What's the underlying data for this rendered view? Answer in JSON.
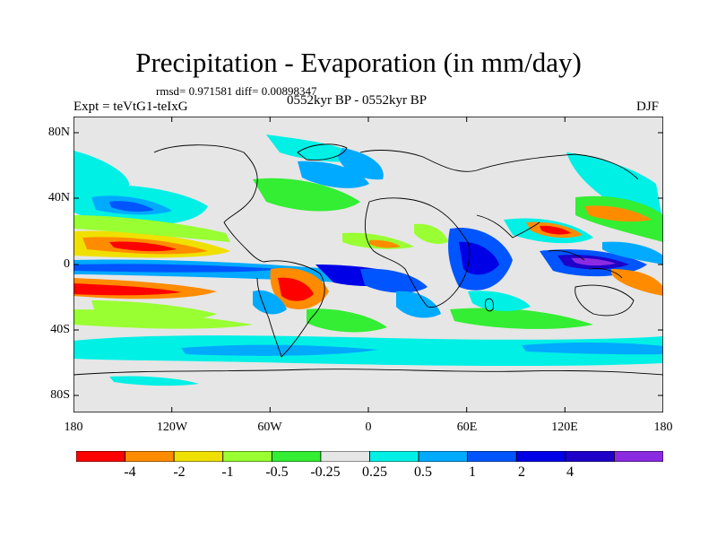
{
  "title": "Precipitation - Evaporation (in mm/day)",
  "stats": "rmsd= 0.971581 diff= 0.00898347",
  "expt": "Expt = teVtG1-teIxG",
  "period": "0552kyr BP - 0552kyr BP",
  "season": "DJF",
  "lat_labels": [
    "80N",
    "40N",
    "0",
    "40S",
    "80S"
  ],
  "lon_labels": [
    "180",
    "120W",
    "60W",
    "0",
    "60E",
    "120E",
    "180"
  ],
  "colorbar": {
    "labels": [
      "-4",
      "-2",
      "-1",
      "-0.5",
      "-0.25",
      "0.25",
      "0.5",
      "1",
      "2",
      "4"
    ],
    "colors": [
      "#ff0000",
      "#ff8c00",
      "#f0e000",
      "#99ff33",
      "#33ee33",
      "#e6e6e6",
      "#00f0e6",
      "#00aaff",
      "#0055ff",
      "#0000e6",
      "#1e00c8",
      "#8a2be2"
    ]
  },
  "map_colors": {
    "ocean_neutral": "#e6e6e6"
  }
}
